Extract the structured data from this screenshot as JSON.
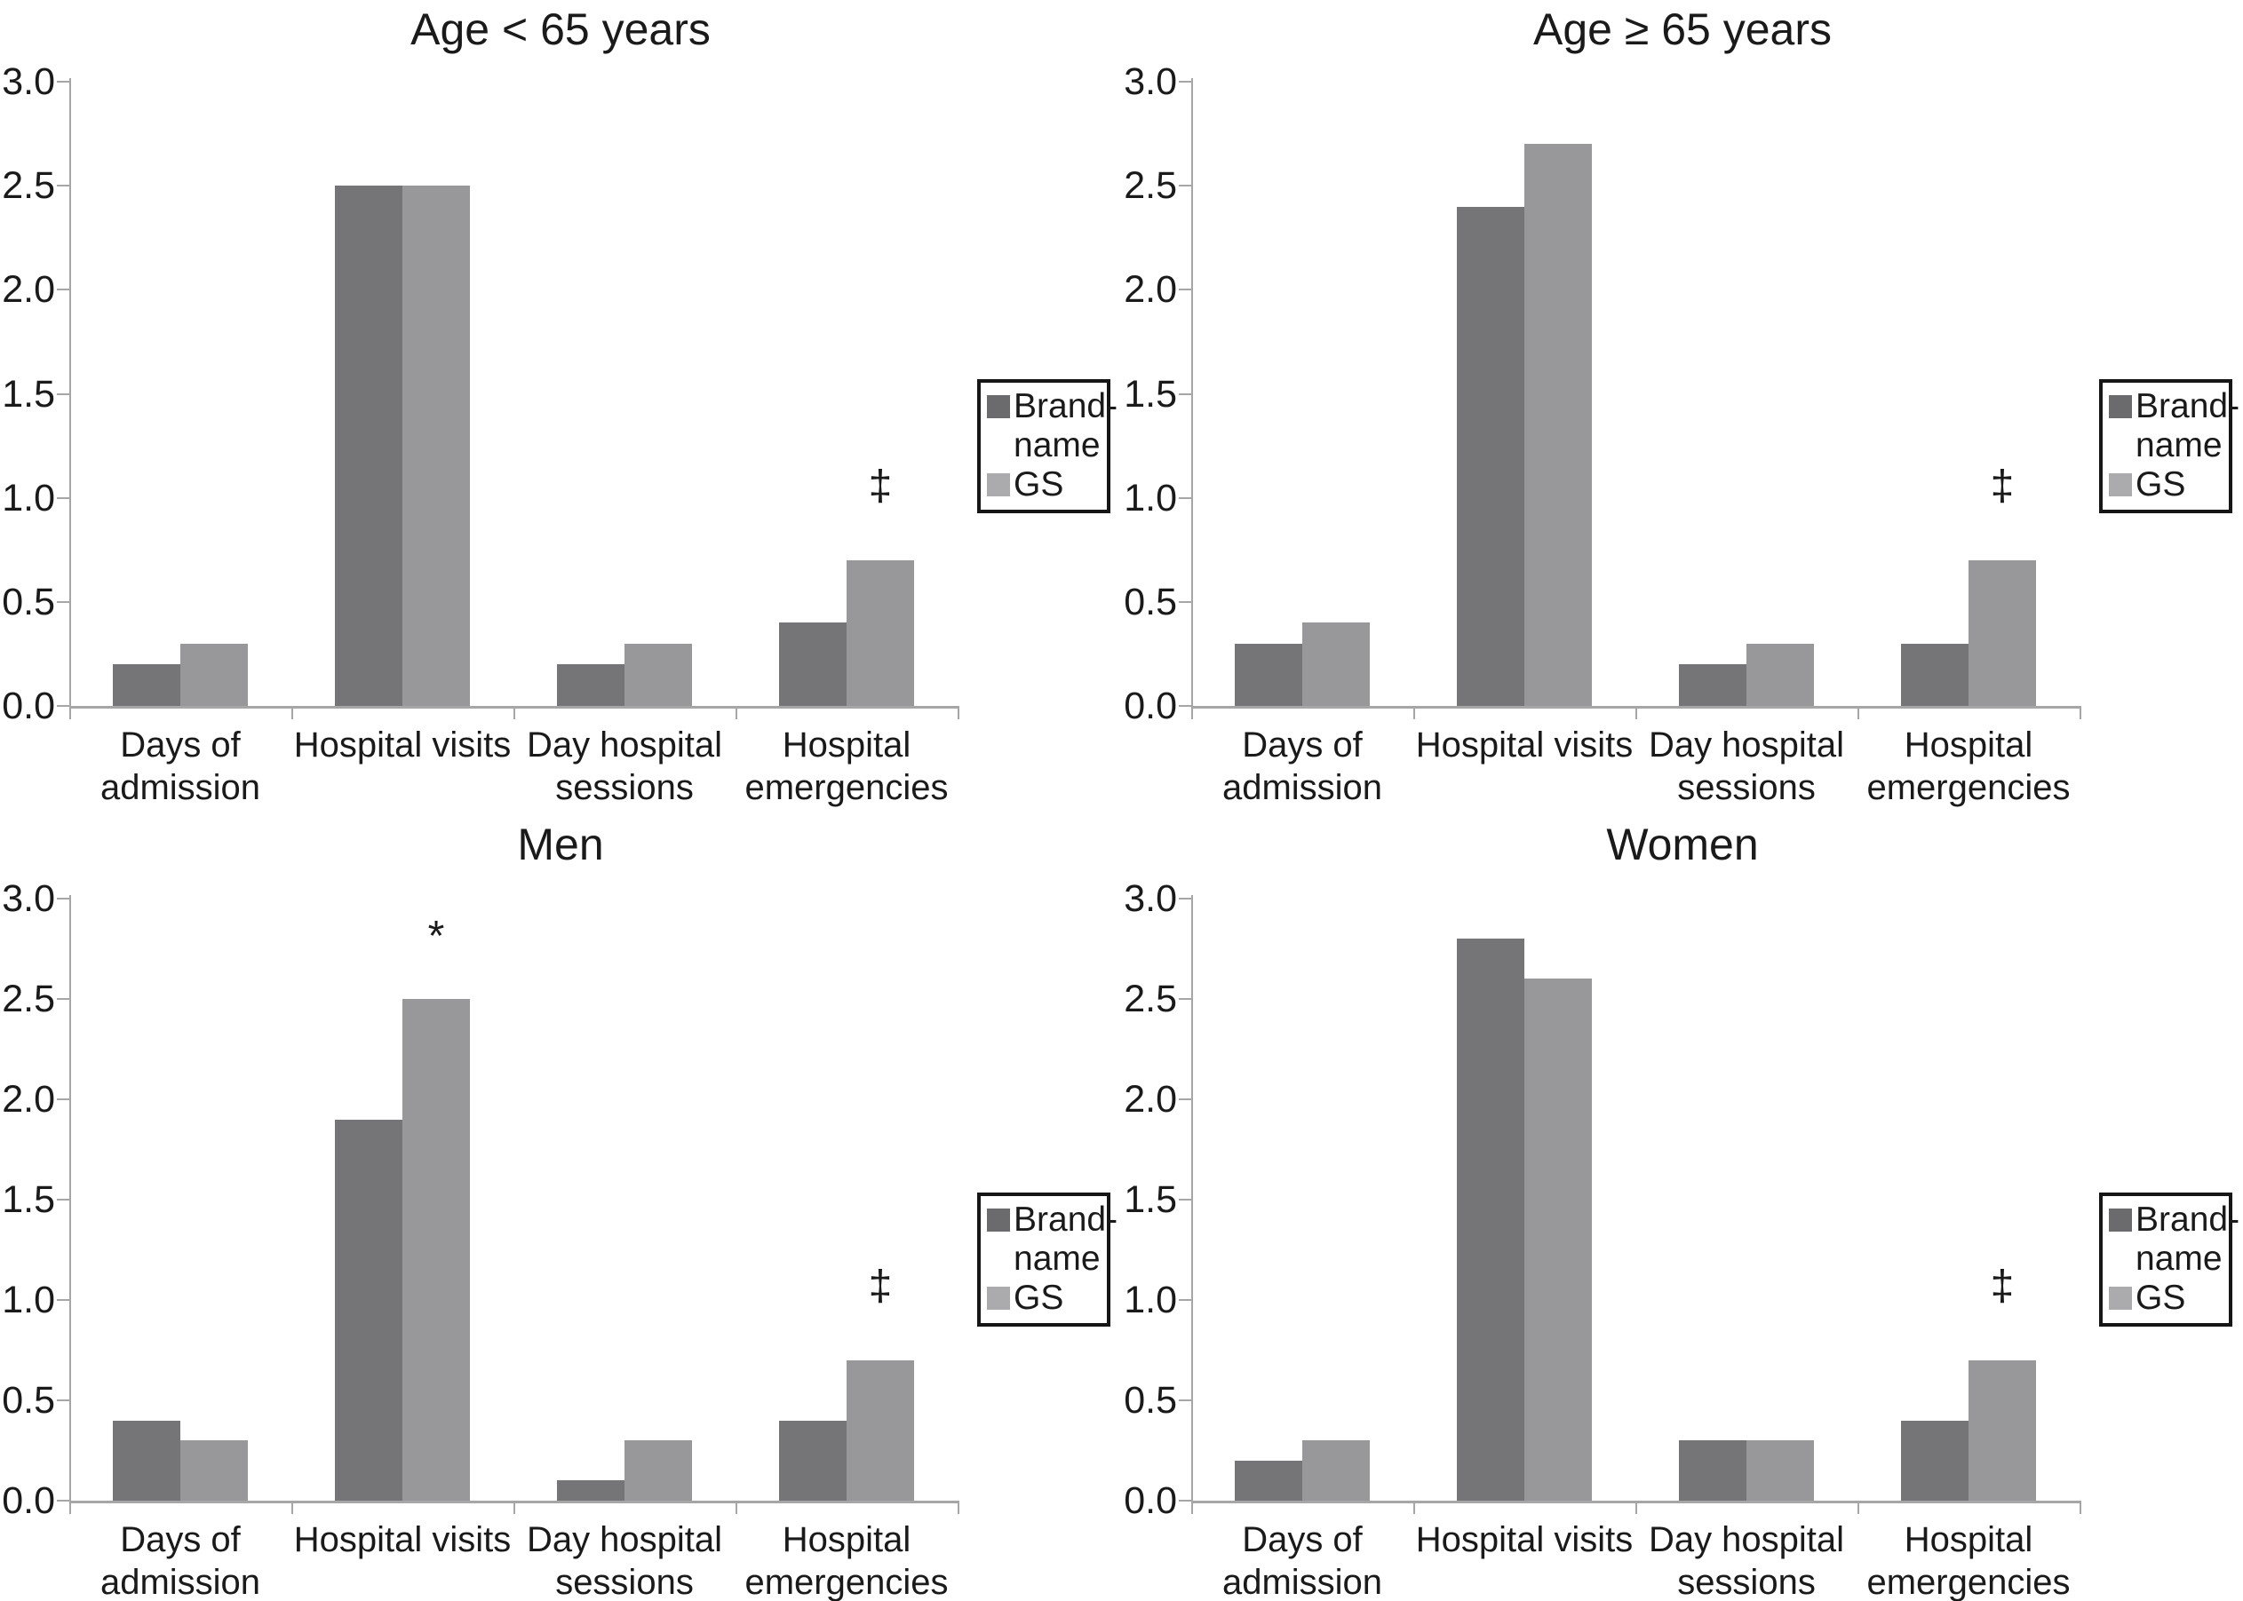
{
  "figure": {
    "background": "#ffffff",
    "text_color": "#1a1a1a",
    "axis_color": "#a6a6a6",
    "legend_border_color": "#161616",
    "series_bar_colors": {
      "Brand-name": "#757578",
      "GS": "#98989b"
    },
    "legend_marker_colors": {
      "Brand-name": "#6b6b6e",
      "GS": "#ababae"
    },
    "legend_labels": [
      "Brand-name",
      "GS"
    ]
  },
  "chart_data": [
    {
      "type": "bar",
      "title": "Age < 65 years",
      "categories": [
        "Days of admission",
        "Hospital visits",
        "Day hospital sessions",
        "Hospital emergencies"
      ],
      "series": [
        {
          "name": "Brand-name",
          "values": [
            0.2,
            2.5,
            0.2,
            0.4
          ]
        },
        {
          "name": "GS",
          "values": [
            0.3,
            2.5,
            0.3,
            0.7
          ]
        }
      ],
      "annotations": [
        {
          "category": "Hospital emergencies",
          "series": "GS",
          "symbol": "‡"
        }
      ],
      "ylim": [
        0.0,
        3.0
      ],
      "y_ticks": [
        3.0,
        2.5,
        2.0,
        1.5,
        1.0,
        0.5,
        0.0
      ],
      "grid": false,
      "legend_position": "right"
    },
    {
      "type": "bar",
      "title": "Age ≥ 65 years",
      "categories": [
        "Days of admission",
        "Hospital visits",
        "Day hospital sessions",
        "Hospital emergencies"
      ],
      "series": [
        {
          "name": "Brand-name",
          "values": [
            0.3,
            2.4,
            0.2,
            0.3
          ]
        },
        {
          "name": "GS",
          "values": [
            0.4,
            2.7,
            0.3,
            0.7
          ]
        }
      ],
      "annotations": [
        {
          "category": "Hospital emergencies",
          "series": "GS",
          "symbol": "‡"
        }
      ],
      "ylim": [
        0.0,
        3.0
      ],
      "y_ticks": [
        3.0,
        2.5,
        2.0,
        1.5,
        1.0,
        0.5,
        0.0
      ],
      "grid": false,
      "legend_position": "right"
    },
    {
      "type": "bar",
      "title": "Men",
      "categories": [
        "Days of admission",
        "Hospital visits",
        "Day hospital sessions",
        "Hospital emergencies"
      ],
      "series": [
        {
          "name": "Brand-name",
          "values": [
            0.4,
            1.9,
            0.1,
            0.4
          ]
        },
        {
          "name": "GS",
          "values": [
            0.3,
            2.5,
            0.3,
            0.7
          ]
        }
      ],
      "annotations": [
        {
          "category": "Hospital visits",
          "series": "GS",
          "symbol": "*"
        },
        {
          "category": "Hospital emergencies",
          "series": "GS",
          "symbol": "‡"
        }
      ],
      "ylim": [
        0.0,
        3.0
      ],
      "y_ticks": [
        3.0,
        2.5,
        2.0,
        1.5,
        1.0,
        0.5,
        0.0
      ],
      "grid": false,
      "legend_position": "right"
    },
    {
      "type": "bar",
      "title": "Women",
      "categories": [
        "Days of admission",
        "Hospital visits",
        "Day hospital sessions",
        "Hospital emergencies"
      ],
      "series": [
        {
          "name": "Brand-name",
          "values": [
            0.2,
            2.8,
            0.3,
            0.4
          ]
        },
        {
          "name": "GS",
          "values": [
            0.3,
            2.6,
            0.3,
            0.7
          ]
        }
      ],
      "annotations": [
        {
          "category": "Hospital emergencies",
          "series": "GS",
          "symbol": "‡"
        }
      ],
      "ylim": [
        0.0,
        3.0
      ],
      "y_ticks": [
        3.0,
        2.5,
        2.0,
        1.5,
        1.0,
        0.5,
        0.0
      ],
      "grid": false,
      "legend_position": "right"
    }
  ]
}
